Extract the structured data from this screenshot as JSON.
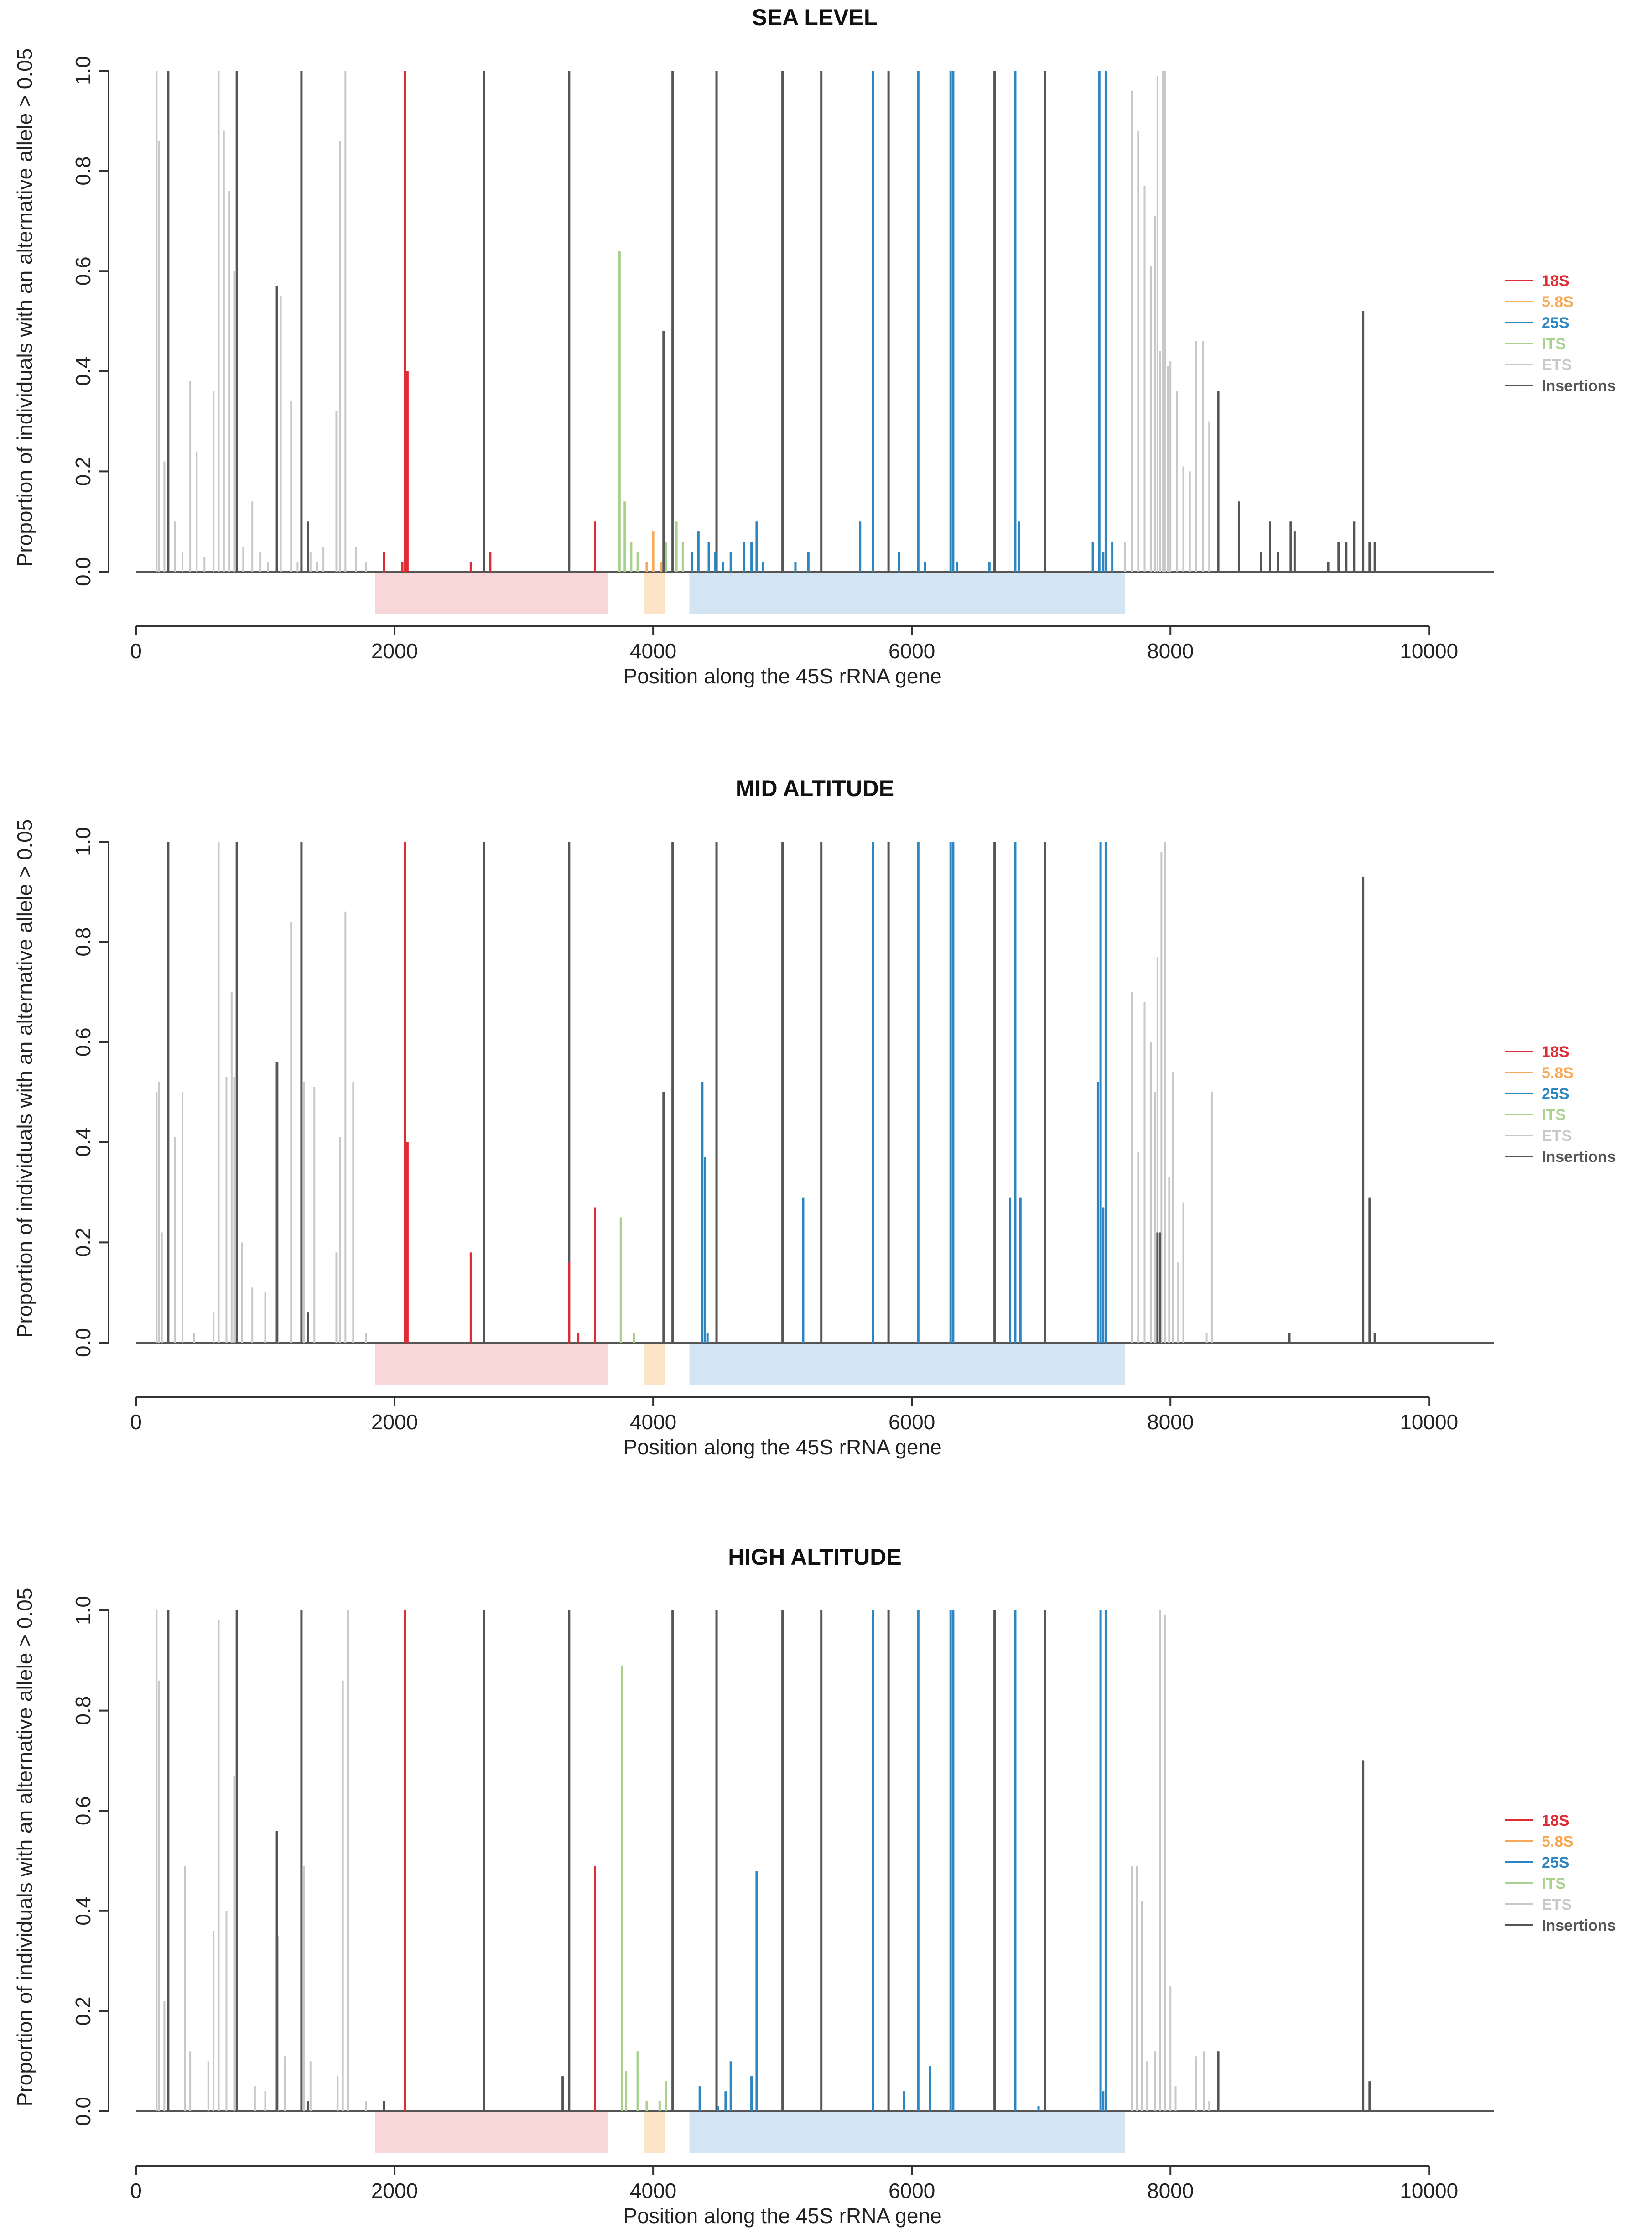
{
  "chart_data": [
    {
      "type": "bar",
      "title": "SEA LEVEL",
      "xlabel": "Position along the 45S rRNA gene",
      "ylabel": "Proportion of individuals with an alternative allele > 0.05",
      "xlim": [
        0,
        10500
      ],
      "ylim": [
        0,
        1
      ],
      "xticks": [
        0,
        2000,
        4000,
        6000,
        8000,
        10000
      ],
      "yticks": [
        0.0,
        0.2,
        0.4,
        0.6,
        0.8,
        1.0
      ],
      "legend_position": "right",
      "legend": [
        {
          "name": "18S",
          "color": "#e02b35"
        },
        {
          "name": "5.8S",
          "color": "#f7a955"
        },
        {
          "name": "25S",
          "color": "#2e86c1"
        },
        {
          "name": "ITS",
          "color": "#a9d18e"
        },
        {
          "name": "ETS",
          "color": "#c8c8c8"
        },
        {
          "name": "Insertions",
          "color": "#555555"
        }
      ],
      "regions": [
        {
          "name": "18S",
          "start": 1850,
          "end": 3650,
          "color": "#f8d7d9"
        },
        {
          "name": "5.8S",
          "start": 3930,
          "end": 4090,
          "color": "#fde4c7"
        },
        {
          "name": "25S",
          "start": 4280,
          "end": 7650,
          "color": "#d3e5f2"
        }
      ],
      "series": [
        {
          "name": "ETS",
          "color": "#c8c8c8",
          "x": [
            160,
            180,
            220,
            300,
            360,
            420,
            470,
            530,
            600,
            640,
            680,
            720,
            760,
            830,
            900,
            960,
            1020,
            1120,
            1200,
            1250,
            1350,
            1400,
            1450,
            1550,
            1580,
            1620,
            1700,
            1780,
            7650,
            7700,
            7750,
            7800,
            7850,
            7880,
            7900,
            7920,
            7940,
            7960,
            7980,
            8000,
            8050,
            8100,
            8150,
            8200,
            8250,
            8300
          ],
          "values": [
            1.0,
            0.86,
            0.22,
            0.1,
            0.04,
            0.38,
            0.24,
            0.03,
            0.36,
            1.0,
            0.88,
            0.76,
            0.6,
            0.05,
            0.14,
            0.04,
            0.02,
            0.55,
            0.34,
            0.02,
            0.04,
            0.02,
            0.05,
            0.32,
            0.86,
            1.0,
            0.05,
            0.02,
            0.06,
            0.96,
            0.88,
            0.77,
            0.61,
            0.71,
            0.99,
            0.44,
            1.0,
            1.0,
            0.41,
            0.42,
            0.36,
            0.21,
            0.2,
            0.46,
            0.46,
            0.3
          ]
        },
        {
          "name": "ITS",
          "color": "#a9d18e",
          "x": [
            3740,
            3780,
            3830,
            3880,
            4000,
            4100,
            4180,
            4230
          ],
          "values": [
            0.64,
            0.14,
            0.06,
            0.04,
            0.02,
            0.06,
            0.1,
            0.06
          ]
        },
        {
          "name": "Insertions",
          "color": "#555555",
          "x": [
            250,
            780,
            1090,
            1280,
            1330,
            2690,
            3350,
            4080,
            4150,
            4490,
            5000,
            5300,
            5820,
            6640,
            7030,
            8370,
            8530,
            8700,
            8770,
            8830,
            8930,
            8960,
            9220,
            9300,
            9360,
            9420,
            9490,
            9540,
            9580
          ],
          "values": [
            1.0,
            1.0,
            0.57,
            1.0,
            0.1,
            1.0,
            1.0,
            0.48,
            1.0,
            1.0,
            1.0,
            1.0,
            1.0,
            1.0,
            1.0,
            0.36,
            0.14,
            0.04,
            0.1,
            0.04,
            0.1,
            0.08,
            0.02,
            0.06,
            0.06,
            0.1,
            0.52,
            0.06,
            0.06
          ]
        },
        {
          "name": "18S",
          "color": "#e02b35",
          "x": [
            1920,
            2060,
            2080,
            2100,
            2590,
            2740,
            3550
          ],
          "values": [
            0.04,
            0.02,
            1.0,
            0.4,
            0.02,
            0.04,
            0.1
          ]
        },
        {
          "name": "5.8S",
          "color": "#f7a955",
          "x": [
            3950,
            4000,
            4060
          ],
          "values": [
            0.02,
            0.08,
            0.02
          ]
        },
        {
          "name": "25S",
          "color": "#2e86c1",
          "x": [
            4300,
            4350,
            4430,
            4480,
            4540,
            4600,
            4700,
            4760,
            4800,
            4850,
            5100,
            5200,
            5600,
            5700,
            5900,
            6050,
            6100,
            6300,
            6320,
            6350,
            6600,
            6800,
            6830,
            7400,
            7450,
            7480,
            7500,
            7550
          ],
          "values": [
            0.04,
            0.08,
            0.06,
            0.04,
            0.02,
            0.04,
            0.06,
            0.06,
            0.1,
            0.02,
            0.02,
            0.04,
            0.1,
            1.0,
            0.04,
            1.0,
            0.02,
            1.0,
            1.0,
            0.02,
            0.02,
            1.0,
            0.1,
            0.06,
            1.0,
            0.04,
            1.0,
            0.06
          ]
        }
      ]
    },
    {
      "type": "bar",
      "title": "MID ALTITUDE",
      "xlabel": "Position along the 45S rRNA gene",
      "ylabel": "Proportion of individuals with an alternative allele > 0.05",
      "xlim": [
        0,
        10500
      ],
      "ylim": [
        0,
        1
      ],
      "xticks": [
        0,
        2000,
        4000,
        6000,
        8000,
        10000
      ],
      "yticks": [
        0.0,
        0.2,
        0.4,
        0.6,
        0.8,
        1.0
      ],
      "legend_position": "right",
      "legend": [
        {
          "name": "18S",
          "color": "#e02b35"
        },
        {
          "name": "5.8S",
          "color": "#f7a955"
        },
        {
          "name": "25S",
          "color": "#2e86c1"
        },
        {
          "name": "ITS",
          "color": "#a9d18e"
        },
        {
          "name": "ETS",
          "color": "#c8c8c8"
        },
        {
          "name": "Insertions",
          "color": "#555555"
        }
      ],
      "regions": [
        {
          "name": "18S",
          "start": 1850,
          "end": 3650,
          "color": "#f8d7d9"
        },
        {
          "name": "5.8S",
          "start": 3930,
          "end": 4090,
          "color": "#fde4c7"
        },
        {
          "name": "25S",
          "start": 4280,
          "end": 7650,
          "color": "#d3e5f2"
        }
      ],
      "series": [
        {
          "name": "ETS",
          "color": "#c8c8c8",
          "x": [
            160,
            180,
            200,
            300,
            360,
            450,
            600,
            640,
            700,
            740,
            760,
            820,
            900,
            1000,
            1100,
            1200,
            1300,
            1380,
            1550,
            1580,
            1620,
            1680,
            1780,
            7700,
            7750,
            7800,
            7850,
            7880,
            7900,
            7930,
            7960,
            7990,
            8020,
            8060,
            8100,
            8280,
            8320
          ],
          "values": [
            0.5,
            0.52,
            0.22,
            0.41,
            0.5,
            0.02,
            0.06,
            1.0,
            0.53,
            0.7,
            0.53,
            0.2,
            0.11,
            0.1,
            0.56,
            0.84,
            0.52,
            0.51,
            0.18,
            0.41,
            0.86,
            0.52,
            0.02,
            0.7,
            0.38,
            0.68,
            0.6,
            0.5,
            0.77,
            0.98,
            1.0,
            0.33,
            0.54,
            0.16,
            0.28,
            0.02,
            0.5
          ]
        },
        {
          "name": "ITS",
          "color": "#a9d18e",
          "x": [
            3750,
            3850
          ],
          "values": [
            0.25,
            0.02
          ]
        },
        {
          "name": "Insertions",
          "color": "#555555",
          "x": [
            250,
            780,
            1090,
            1280,
            1330,
            2690,
            3350,
            4080,
            4150,
            4490,
            5000,
            5300,
            5820,
            6640,
            7030,
            7900,
            7920,
            8920,
            9490,
            9540,
            9580
          ],
          "values": [
            1.0,
            1.0,
            0.56,
            1.0,
            0.06,
            1.0,
            1.0,
            0.5,
            1.0,
            1.0,
            1.0,
            1.0,
            1.0,
            1.0,
            1.0,
            0.22,
            0.22,
            0.02,
            0.93,
            0.29,
            0.02
          ]
        },
        {
          "name": "18S",
          "color": "#e02b35",
          "x": [
            2080,
            2100,
            2590,
            3350,
            3420,
            3550
          ],
          "values": [
            1.0,
            0.4,
            0.18,
            0.16,
            0.02,
            0.27
          ]
        },
        {
          "name": "5.8S",
          "color": "#f7a955",
          "x": [],
          "values": []
        },
        {
          "name": "25S",
          "color": "#2e86c1",
          "x": [
            4380,
            4400,
            4420,
            5160,
            5700,
            6050,
            6300,
            6320,
            6760,
            6800,
            6840,
            7440,
            7460,
            7480,
            7500
          ],
          "values": [
            0.52,
            0.37,
            0.02,
            0.29,
            1.0,
            1.0,
            1.0,
            1.0,
            0.29,
            1.0,
            0.29,
            0.52,
            1.0,
            0.27,
            1.0
          ]
        }
      ]
    },
    {
      "type": "bar",
      "title": "HIGH ALTITUDE",
      "xlabel": "Position along the 45S rRNA gene",
      "ylabel": "Proportion of individuals with an alternative allele > 0.05",
      "xlim": [
        0,
        10500
      ],
      "ylim": [
        0,
        1
      ],
      "xticks": [
        0,
        2000,
        4000,
        6000,
        8000,
        10000
      ],
      "yticks": [
        0.0,
        0.2,
        0.4,
        0.6,
        0.8,
        1.0
      ],
      "legend_position": "right",
      "legend": [
        {
          "name": "18S",
          "color": "#e02b35"
        },
        {
          "name": "5.8S",
          "color": "#f7a955"
        },
        {
          "name": "25S",
          "color": "#2e86c1"
        },
        {
          "name": "ITS",
          "color": "#a9d18e"
        },
        {
          "name": "ETS",
          "color": "#c8c8c8"
        },
        {
          "name": "Insertions",
          "color": "#555555"
        }
      ],
      "regions": [
        {
          "name": "18S",
          "start": 1850,
          "end": 3650,
          "color": "#f8d7d9"
        },
        {
          "name": "5.8S",
          "start": 3930,
          "end": 4090,
          "color": "#fde4c7"
        },
        {
          "name": "25S",
          "start": 4280,
          "end": 7650,
          "color": "#d3e5f2"
        }
      ],
      "series": [
        {
          "name": "ETS",
          "color": "#c8c8c8",
          "x": [
            160,
            180,
            220,
            380,
            420,
            560,
            600,
            640,
            700,
            760,
            920,
            1000,
            1100,
            1150,
            1300,
            1350,
            1560,
            1600,
            1640,
            1780,
            7700,
            7740,
            7780,
            7820,
            7880,
            7920,
            7960,
            8000,
            8040,
            8200,
            8260,
            8300
          ],
          "values": [
            1.0,
            0.86,
            0.22,
            0.49,
            0.12,
            0.1,
            0.36,
            0.98,
            0.4,
            0.67,
            0.05,
            0.04,
            0.35,
            0.11,
            0.49,
            0.1,
            0.07,
            0.86,
            1.0,
            0.02,
            0.49,
            0.49,
            0.42,
            0.1,
            0.12,
            1.0,
            0.99,
            0.25,
            0.05,
            0.11,
            0.12,
            0.02
          ]
        },
        {
          "name": "ITS",
          "color": "#a9d18e",
          "x": [
            3760,
            3790,
            3880,
            3950,
            4050,
            4100
          ],
          "values": [
            0.89,
            0.08,
            0.12,
            0.02,
            0.02,
            0.06
          ]
        },
        {
          "name": "Insertions",
          "color": "#555555",
          "x": [
            250,
            780,
            1090,
            1280,
            1330,
            1920,
            2690,
            3300,
            3350,
            4150,
            4490,
            5000,
            5300,
            5820,
            6640,
            7030,
            8370,
            9490,
            9540
          ],
          "values": [
            1.0,
            1.0,
            0.56,
            1.0,
            0.02,
            0.02,
            1.0,
            0.07,
            1.0,
            1.0,
            1.0,
            1.0,
            1.0,
            1.0,
            1.0,
            1.0,
            0.12,
            0.7,
            0.06
          ]
        },
        {
          "name": "18S",
          "color": "#e02b35",
          "x": [
            2080,
            3550
          ],
          "values": [
            1.0,
            0.49
          ]
        },
        {
          "name": "5.8S",
          "color": "#f7a955",
          "x": [],
          "values": []
        },
        {
          "name": "25S",
          "color": "#2e86c1",
          "x": [
            4360,
            4500,
            4560,
            4600,
            4760,
            4800,
            5700,
            5940,
            6050,
            6140,
            6300,
            6320,
            6800,
            6980,
            7460,
            7480,
            7500
          ],
          "values": [
            0.05,
            0.01,
            0.04,
            0.1,
            0.07,
            0.48,
            1.0,
            0.04,
            1.0,
            0.09,
            1.0,
            1.0,
            1.0,
            0.01,
            1.0,
            0.04,
            1.0
          ]
        }
      ]
    }
  ]
}
